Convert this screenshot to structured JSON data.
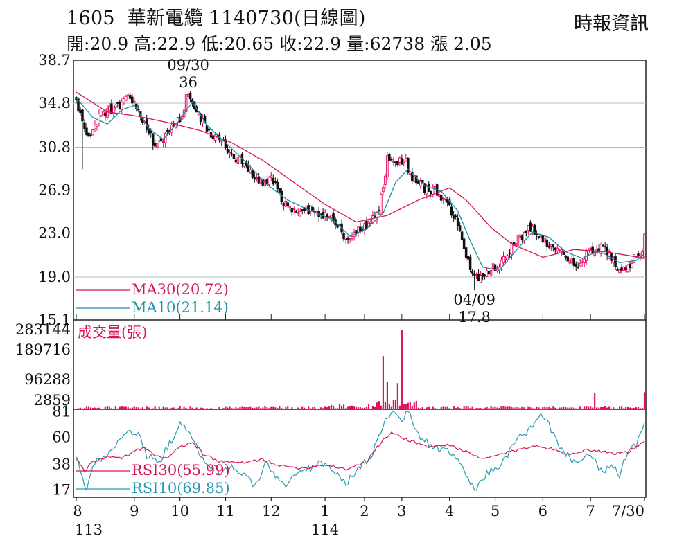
{
  "header": {
    "code": "1605",
    "name": "華新電纜",
    "date": "1140730",
    "period": "(日線圖)",
    "source": "時報資訊"
  },
  "quote": {
    "open_label": "開:",
    "open": "20.9",
    "high_label": "高:",
    "high": "22.9",
    "low_label": "低:",
    "low": "20.65",
    "close_label": "收:",
    "close": "22.9",
    "volume_label": "量:",
    "volume": "62738",
    "change_label": "漲",
    "change": "2.05"
  },
  "colors": {
    "up": "#e8005e",
    "down": "#111111",
    "ma30": "#d4145a",
    "ma10": "#1b8fa6",
    "volume": "#e0105f",
    "rsi30": "#d4145a",
    "rsi10": "#2a9ab0",
    "grid": "#b8b8b8"
  },
  "chart_data": [
    {
      "type": "candlestick",
      "ylim": [
        15.1,
        38.7
      ],
      "yticks": [
        "38.7",
        "34.8",
        "30.8",
        "26.9",
        "23.0",
        "19.0",
        "15.1"
      ],
      "annotations": [
        {
          "date_label": "09/30",
          "value_label": "36",
          "value": 36,
          "kind": "high"
        },
        {
          "date_label": "04/09",
          "value_label": "17.8",
          "value": 17.8,
          "kind": "low"
        }
      ],
      "legend": [
        {
          "label": "MA30(20.72)",
          "color": "#d4145a"
        },
        {
          "label": "MA10(21.14)",
          "color": "#1b8fa6"
        }
      ],
      "anchors": [
        [
          0,
          34.9
        ],
        [
          6,
          31.5
        ],
        [
          12,
          33.8
        ],
        [
          20,
          34.6
        ],
        [
          26,
          35.2
        ],
        [
          32,
          33.4
        ],
        [
          38,
          31.0
        ],
        [
          44,
          32.0
        ],
        [
          50,
          33.3
        ],
        [
          54,
          35.8
        ],
        [
          58,
          34.2
        ],
        [
          64,
          32.3
        ],
        [
          70,
          31.3
        ],
        [
          76,
          30.0
        ],
        [
          82,
          29.3
        ],
        [
          88,
          27.4
        ],
        [
          94,
          28.2
        ],
        [
          100,
          25.6
        ],
        [
          106,
          24.8
        ],
        [
          112,
          25.1
        ],
        [
          118,
          24.7
        ],
        [
          124,
          24.3
        ],
        [
          130,
          22.4
        ],
        [
          136,
          23.2
        ],
        [
          142,
          24.0
        ],
        [
          146,
          25.4
        ],
        [
          150,
          29.7
        ],
        [
          154,
          29.1
        ],
        [
          158,
          29.8
        ],
        [
          162,
          28.0
        ],
        [
          168,
          27.0
        ],
        [
          174,
          26.8
        ],
        [
          180,
          25.2
        ],
        [
          184,
          23.7
        ],
        [
          188,
          20.9
        ],
        [
          192,
          18.8
        ],
        [
          196,
          19.3
        ],
        [
          200,
          19.7
        ],
        [
          206,
          20.6
        ],
        [
          212,
          22.2
        ],
        [
          218,
          23.5
        ],
        [
          224,
          22.5
        ],
        [
          230,
          21.6
        ],
        [
          236,
          21.0
        ],
        [
          242,
          20.0
        ],
        [
          248,
          21.5
        ],
        [
          252,
          21.7
        ],
        [
          256,
          21.2
        ],
        [
          262,
          19.7
        ],
        [
          266,
          20.0
        ],
        [
          270,
          21.1
        ],
        [
          273,
          20.9
        ],
        [
          274,
          22.9
        ]
      ],
      "ma30_anchors": [
        [
          0,
          35.8
        ],
        [
          15,
          34.0
        ],
        [
          30,
          33.6
        ],
        [
          45,
          33.0
        ],
        [
          60,
          32.3
        ],
        [
          75,
          31.2
        ],
        [
          90,
          29.6
        ],
        [
          105,
          27.6
        ],
        [
          120,
          25.6
        ],
        [
          135,
          24.0
        ],
        [
          150,
          24.6
        ],
        [
          165,
          26.0
        ],
        [
          180,
          27.1
        ],
        [
          188,
          26.0
        ],
        [
          200,
          23.5
        ],
        [
          210,
          22.0
        ],
        [
          225,
          20.8
        ],
        [
          240,
          21.5
        ],
        [
          255,
          21.3
        ],
        [
          274,
          20.72
        ]
      ],
      "ma10_anchors": [
        [
          0,
          35.3
        ],
        [
          8,
          33.5
        ],
        [
          15,
          32.9
        ],
        [
          22,
          34.2
        ],
        [
          28,
          34.6
        ],
        [
          35,
          32.5
        ],
        [
          42,
          31.5
        ],
        [
          50,
          33.3
        ],
        [
          56,
          34.9
        ],
        [
          63,
          32.8
        ],
        [
          72,
          31.2
        ],
        [
          82,
          29.4
        ],
        [
          92,
          27.4
        ],
        [
          102,
          26.0
        ],
        [
          112,
          25.1
        ],
        [
          124,
          24.2
        ],
        [
          132,
          22.7
        ],
        [
          140,
          23.4
        ],
        [
          148,
          24.8
        ],
        [
          154,
          27.6
        ],
        [
          160,
          28.8
        ],
        [
          168,
          27.3
        ],
        [
          176,
          26.8
        ],
        [
          184,
          25.0
        ],
        [
          190,
          22.3
        ],
        [
          196,
          19.9
        ],
        [
          204,
          19.6
        ],
        [
          212,
          21.4
        ],
        [
          220,
          23.1
        ],
        [
          228,
          22.6
        ],
        [
          236,
          21.3
        ],
        [
          244,
          20.7
        ],
        [
          252,
          21.4
        ],
        [
          262,
          20.3
        ],
        [
          270,
          20.5
        ],
        [
          274,
          21.14
        ]
      ]
    },
    {
      "type": "bar",
      "title": "成交量(張)",
      "ylim": [
        2859,
        283144
      ],
      "yticks": [
        "283144",
        "189716",
        "96288",
        "2859"
      ],
      "peaks": [
        {
          "x": 148,
          "value": 190000
        },
        {
          "x": 150,
          "value": 100000
        },
        {
          "x": 155,
          "value": 95000
        },
        {
          "x": 157,
          "value": 283144
        },
        {
          "x": 250,
          "value": 60000
        },
        {
          "x": 274,
          "value": 62738
        }
      ]
    },
    {
      "type": "line",
      "ylim": [
        11,
        83
      ],
      "yticks": [
        "81",
        "60",
        "38",
        "17"
      ],
      "legend": [
        {
          "label": "RSI30(55.99)",
          "color": "#d4145a"
        },
        {
          "label": "RSI10(69.85)",
          "color": "#2a9ab0"
        }
      ],
      "rsi30_anchors": [
        [
          0,
          44
        ],
        [
          4,
          32
        ],
        [
          8,
          40
        ],
        [
          15,
          44
        ],
        [
          22,
          43
        ],
        [
          28,
          48
        ],
        [
          33,
          52
        ],
        [
          38,
          44
        ],
        [
          44,
          44
        ],
        [
          50,
          52
        ],
        [
          56,
          56
        ],
        [
          62,
          45
        ],
        [
          70,
          40
        ],
        [
          80,
          39
        ],
        [
          90,
          42
        ],
        [
          100,
          36
        ],
        [
          110,
          35
        ],
        [
          120,
          38
        ],
        [
          130,
          34
        ],
        [
          140,
          40
        ],
        [
          146,
          54
        ],
        [
          152,
          64
        ],
        [
          160,
          58
        ],
        [
          170,
          52
        ],
        [
          180,
          54
        ],
        [
          188,
          48
        ],
        [
          196,
          42
        ],
        [
          204,
          46
        ],
        [
          214,
          50
        ],
        [
          222,
          54
        ],
        [
          230,
          50
        ],
        [
          238,
          46
        ],
        [
          246,
          50
        ],
        [
          252,
          49
        ],
        [
          260,
          47
        ],
        [
          266,
          48
        ],
        [
          270,
          52
        ],
        [
          274,
          55.99
        ]
      ],
      "rsi10_anchors": [
        [
          0,
          44
        ],
        [
          3,
          28
        ],
        [
          5,
          16
        ],
        [
          8,
          38
        ],
        [
          14,
          45
        ],
        [
          20,
          56
        ],
        [
          26,
          66
        ],
        [
          30,
          62
        ],
        [
          34,
          45
        ],
        [
          40,
          40
        ],
        [
          46,
          58
        ],
        [
          50,
          72
        ],
        [
          54,
          64
        ],
        [
          58,
          52
        ],
        [
          62,
          40
        ],
        [
          70,
          31
        ],
        [
          76,
          36
        ],
        [
          82,
          28
        ],
        [
          86,
          20
        ],
        [
          92,
          40
        ],
        [
          96,
          28
        ],
        [
          100,
          20
        ],
        [
          106,
          30
        ],
        [
          112,
          34
        ],
        [
          118,
          40
        ],
        [
          124,
          32
        ],
        [
          130,
          22
        ],
        [
          136,
          34
        ],
        [
          142,
          44
        ],
        [
          146,
          62
        ],
        [
          152,
          83
        ],
        [
          156,
          74
        ],
        [
          160,
          80
        ],
        [
          166,
          60
        ],
        [
          172,
          52
        ],
        [
          180,
          48
        ],
        [
          186,
          36
        ],
        [
          192,
          16
        ],
        [
          198,
          30
        ],
        [
          206,
          40
        ],
        [
          212,
          58
        ],
        [
          220,
          68
        ],
        [
          224,
          78
        ],
        [
          228,
          70
        ],
        [
          234,
          50
        ],
        [
          240,
          40
        ],
        [
          246,
          46
        ],
        [
          250,
          40
        ],
        [
          254,
          30
        ],
        [
          258,
          38
        ],
        [
          262,
          28
        ],
        [
          266,
          50
        ],
        [
          270,
          54
        ],
        [
          274,
          69.85
        ]
      ]
    }
  ],
  "x_axis": {
    "labels": [
      {
        "month": "8",
        "year": "113",
        "x": 0
      },
      {
        "month": "9",
        "x": 28
      },
      {
        "month": "10",
        "x": 50
      },
      {
        "month": "11",
        "x": 72
      },
      {
        "month": "12",
        "x": 94
      },
      {
        "month": "1",
        "year": "114",
        "x": 120
      },
      {
        "month": "2",
        "x": 139
      },
      {
        "month": "3",
        "x": 157
      },
      {
        "month": "4",
        "x": 180
      },
      {
        "month": "5",
        "x": 202
      },
      {
        "month": "6",
        "x": 225
      },
      {
        "month": "7",
        "x": 248
      },
      {
        "month": "7/30",
        "x": 274
      }
    ]
  }
}
